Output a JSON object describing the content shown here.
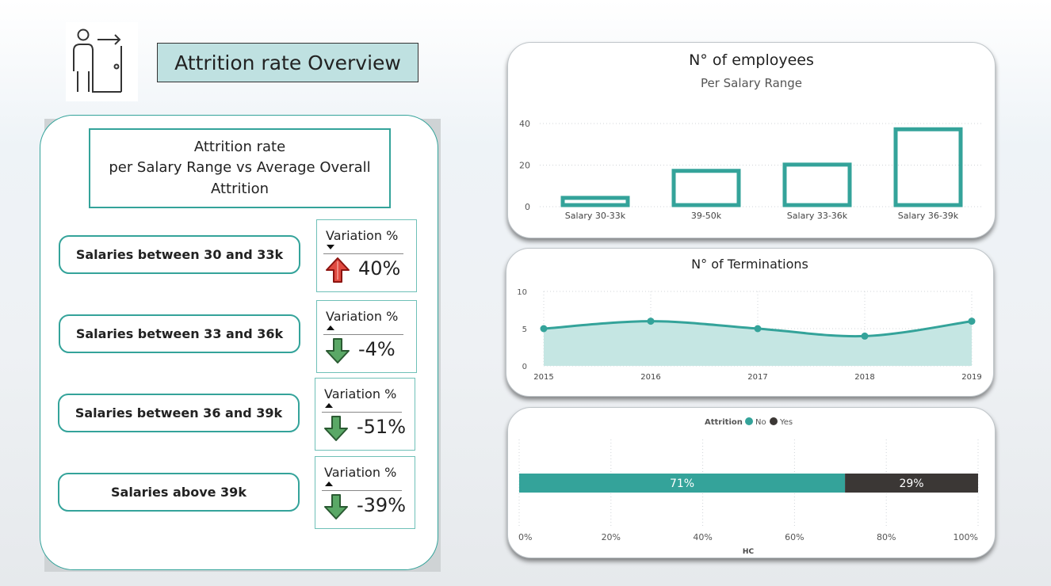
{
  "header": {
    "title": "Attrition rate Overview",
    "logo_icon": "employee-exit-door-icon"
  },
  "left_panel": {
    "title_lines": [
      "Attrition rate",
      "per Salary Range vs Average Overall",
      "Attrition"
    ],
    "rows": [
      {
        "label": "Salaries between 30 and 33k",
        "variation_label": "Variation %",
        "value": "40%",
        "direction": "up",
        "arrow_color": "#c8201c",
        "arrow_icon": "arrow-up-icon"
      },
      {
        "label": "Salaries between 33 and 36k",
        "variation_label": "Variation %",
        "value": "-4%",
        "direction": "down",
        "arrow_color": "#3a8a4a",
        "arrow_icon": "arrow-down-icon"
      },
      {
        "label": "Salaries between 36 and 39k",
        "variation_label": "Variation %",
        "value": "-51%",
        "direction": "down",
        "arrow_color": "#3a8a4a",
        "arrow_icon": "arrow-down-icon"
      },
      {
        "label": "Salaries above 39k",
        "variation_label": "Variation %",
        "value": "-39%",
        "direction": "down",
        "arrow_color": "#3a8a4a",
        "arrow_icon": "arrow-down-icon"
      }
    ]
  },
  "accent_color": "#34a39a",
  "chart_data": [
    {
      "type": "bar",
      "title": "N° of employees",
      "subtitle": "Per Salary Range",
      "categories": [
        "Salary 30-33k",
        "39-50k",
        "Salary 33-36k",
        "Salary 36-39k"
      ],
      "values": [
        5,
        18,
        21,
        38
      ],
      "ylim": [
        0,
        40
      ],
      "yticks": [
        0,
        20,
        40
      ],
      "grid": true,
      "color": "#34a39a"
    },
    {
      "type": "area",
      "title": "N° of Terminations",
      "x": [
        "2015",
        "2016",
        "2017",
        "2018",
        "2019"
      ],
      "values": [
        5,
        6,
        5,
        4,
        6
      ],
      "ylim": [
        0,
        10
      ],
      "yticks": [
        0,
        5,
        10
      ],
      "grid": true,
      "color": "#34a39a"
    },
    {
      "type": "bar",
      "orientation": "horizontal-stacked-100",
      "legend_title": "Attrition",
      "legend_position": "top-center",
      "series": [
        {
          "name": "No",
          "value": 71,
          "label": "71%",
          "color": "#34a39a"
        },
        {
          "name": "Yes",
          "value": 29,
          "label": "29%",
          "color": "#3b3735"
        }
      ],
      "xticks": [
        "0%",
        "20%",
        "40%",
        "60%",
        "80%",
        "100%"
      ],
      "xlabel": "HC",
      "xlim": [
        0,
        100
      ]
    }
  ]
}
